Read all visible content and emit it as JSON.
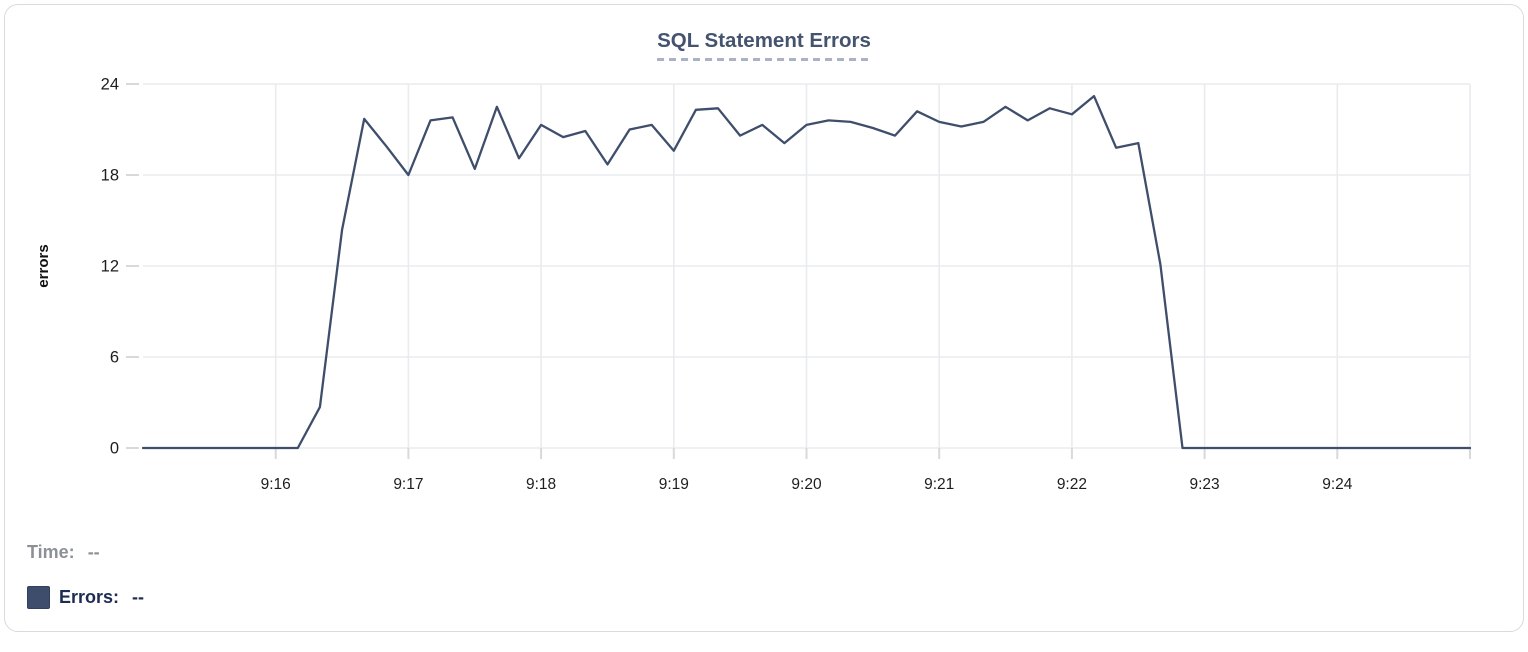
{
  "title": "SQL Statement Errors",
  "chart_data": {
    "type": "line",
    "title": "SQL Statement Errors",
    "xlabel": "",
    "ylabel": "errors",
    "x_start": "9:15:00",
    "x_end": "9:25:00",
    "x_step_seconds": 10,
    "x_tick_labels": [
      "9:16",
      "9:17",
      "9:18",
      "9:19",
      "9:20",
      "9:21",
      "9:22",
      "9:23",
      "9:24"
    ],
    "y_ticks": [
      0,
      6,
      12,
      18,
      24
    ],
    "ylim": [
      0,
      24
    ],
    "grid": true,
    "legend_position": "bottom-left",
    "line_color": "#3f4e6b",
    "series": [
      {
        "name": "Errors",
        "values": [
          0,
          0,
          0,
          0,
          0,
          0,
          0,
          0,
          2.7,
          14.4,
          21.7,
          19.9,
          18,
          21.6,
          21.8,
          18.4,
          22.5,
          19.1,
          21.3,
          20.5,
          20.9,
          18.7,
          21,
          21.3,
          19.6,
          22.3,
          22.4,
          20.6,
          21.3,
          20.1,
          21.3,
          21.6,
          21.5,
          21.1,
          20.6,
          22.2,
          21.5,
          21.2,
          21.5,
          22.5,
          21.6,
          22.4,
          22,
          23.2,
          19.8,
          20.1,
          12.1,
          0,
          0,
          0,
          0,
          0,
          0,
          0,
          0,
          0,
          0,
          0,
          0,
          0,
          0
        ]
      }
    ]
  },
  "legend": {
    "rows": [
      {
        "label": "Time:",
        "value": "--",
        "color": "#8d9197",
        "swatch": null
      },
      {
        "label": "Errors:",
        "value": "--",
        "color": "#1d2c52",
        "swatch": "#3f4d6c"
      }
    ]
  },
  "colors": {
    "grid": "#e9ebee",
    "tick": "#d9d9d9",
    "axis_text": "#1e1e1e",
    "ylabel_text": "#111111",
    "title": "#44536e",
    "title_underline": "#a9b3c5",
    "card_border": "#d8dadd",
    "line": "#3f4e6b"
  }
}
